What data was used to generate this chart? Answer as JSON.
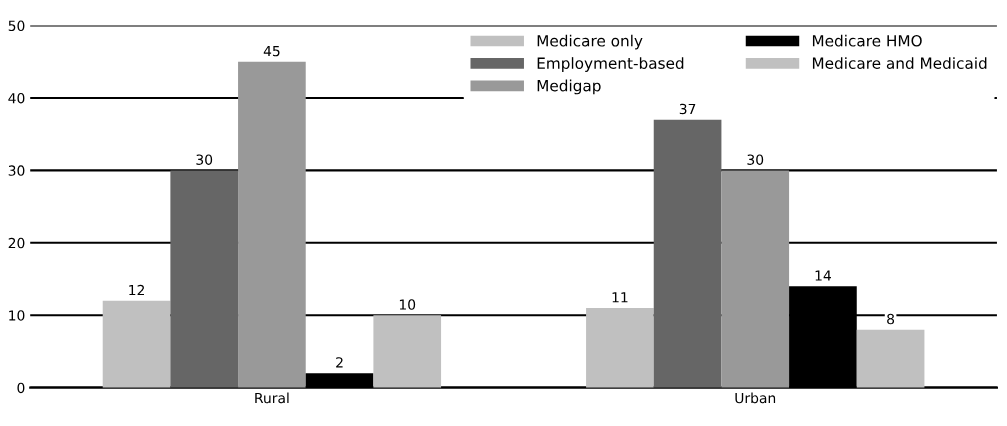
{
  "chart_data": {
    "type": "bar",
    "categories": [
      "Rural",
      "Urban"
    ],
    "series": [
      {
        "name": "Medicare only",
        "color": "#c0c0c0",
        "values": [
          12,
          11
        ]
      },
      {
        "name": "Employment-based",
        "color": "#666666",
        "values": [
          30,
          37
        ]
      },
      {
        "name": "Medigap",
        "color": "#999999",
        "values": [
          45,
          30
        ]
      },
      {
        "name": "Medicare HMO",
        "color": "#000000",
        "values": [
          2,
          14
        ]
      },
      {
        "name": "Medicare and Medicaid",
        "color": "#c0c0c0",
        "values": [
          10,
          8
        ]
      }
    ],
    "ylim": [
      0,
      50
    ],
    "yticks": [
      0,
      10,
      20,
      30,
      40,
      50
    ],
    "grid": "y",
    "legend": "top right",
    "data_labels": true
  }
}
